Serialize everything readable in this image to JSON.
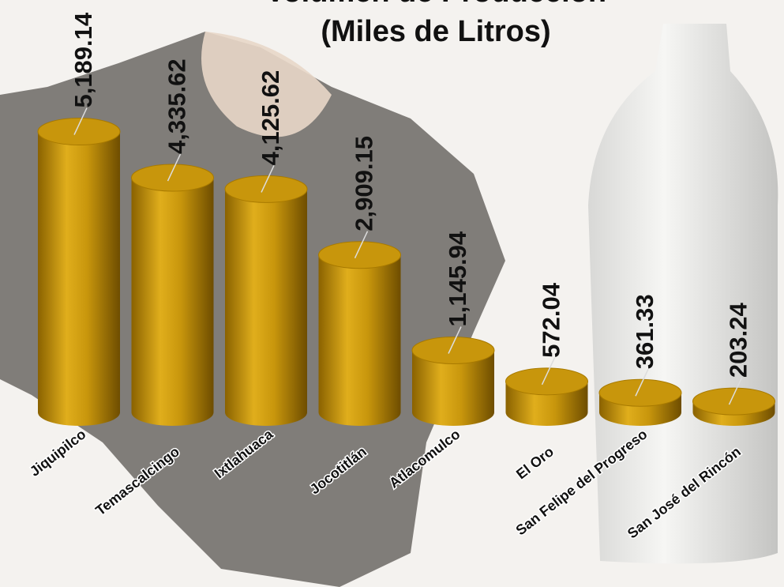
{
  "chart_data": {
    "type": "bar",
    "title": "Volumen de Producción",
    "subtitle": "(Miles de Litros)",
    "categories": [
      "Jiquipilco",
      "Temascalcingo",
      "Ixtlahuaca",
      "Jocotitlán",
      "Atlacomulco",
      "El Oro",
      "San Felipe del Progreso",
      "San José del Rincón"
    ],
    "values": [
      5189.14,
      4335.62,
      4125.62,
      2909.15,
      1145.94,
      572.04,
      361.33,
      203.24
    ],
    "value_labels": [
      "5,189.14",
      "4,335.62",
      "4,125.62",
      "2,909.15",
      "1,145.94",
      "572.04",
      "361.33",
      "203.24"
    ],
    "color": "#c8960c"
  }
}
